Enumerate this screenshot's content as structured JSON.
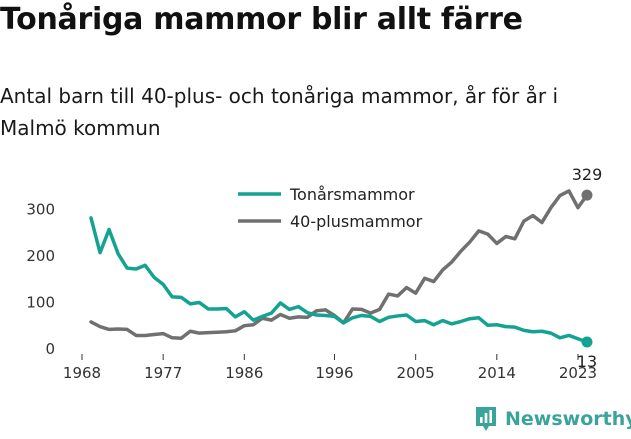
{
  "title": "Tonåriga mammor blir allt färre",
  "subtitle": "Antal barn till 40-plus- och tonåriga mammor, år för år i Malmö kommun",
  "brand": {
    "name": "Newsworthy",
    "color": "#3aa39a",
    "icon": "bar-chart-badge-icon"
  },
  "chart_data": {
    "type": "line",
    "x": [
      1969,
      1970,
      1971,
      1972,
      1973,
      1974,
      1975,
      1976,
      1977,
      1978,
      1979,
      1980,
      1981,
      1982,
      1983,
      1984,
      1985,
      1986,
      1987,
      1988,
      1989,
      1990,
      1991,
      1992,
      1993,
      1994,
      1995,
      1996,
      1997,
      1998,
      1999,
      2000,
      2001,
      2002,
      2003,
      2004,
      2005,
      2006,
      2007,
      2008,
      2009,
      2010,
      2011,
      2012,
      2013,
      2014,
      2015,
      2016,
      2017,
      2018,
      2019,
      2020,
      2021,
      2022,
      2023,
      2024
    ],
    "series": [
      {
        "name": "Tonårsmammor",
        "color": "#14a393",
        "values": [
          280,
          205,
          255,
          203,
          172,
          170,
          178,
          152,
          137,
          110,
          109,
          95,
          98,
          84,
          84,
          85,
          67,
          78,
          60,
          68,
          75,
          97,
          83,
          89,
          76,
          71,
          70,
          68,
          54,
          65,
          70,
          68,
          57,
          66,
          69,
          71,
          57,
          59,
          50,
          59,
          52,
          57,
          63,
          65,
          49,
          50,
          46,
          45,
          38,
          35,
          36,
          32,
          22,
          27,
          20,
          13
        ]
      },
      {
        "name": "40-plusmammor",
        "color": "#707070",
        "values": [
          56,
          46,
          40,
          41,
          40,
          27,
          27,
          29,
          31,
          22,
          21,
          36,
          32,
          33,
          34,
          35,
          37,
          48,
          50,
          64,
          60,
          72,
          64,
          67,
          66,
          80,
          82,
          70,
          54,
          84,
          83,
          75,
          83,
          116,
          112,
          130,
          118,
          150,
          143,
          168,
          185,
          208,
          228,
          252,
          245,
          225,
          240,
          235,
          273,
          285,
          270,
          302,
          328,
          338,
          302,
          329
        ]
      }
    ],
    "xticks": [
      1968,
      1977,
      1986,
      1996,
      2005,
      2014,
      2023
    ],
    "xtick_labels": [
      "1968",
      "1977",
      "1986",
      "1996",
      "2005",
      "2014",
      "2023"
    ],
    "yticks": [
      0,
      100,
      200,
      300
    ],
    "ylim": [
      0,
      340
    ],
    "xlim": [
      1968,
      2025
    ],
    "end_labels": [
      {
        "series": "40-plusmammor",
        "value": "329"
      },
      {
        "series": "Tonårsmammor",
        "value": "13"
      }
    ],
    "legend_position": "top-center",
    "grid": false
  }
}
